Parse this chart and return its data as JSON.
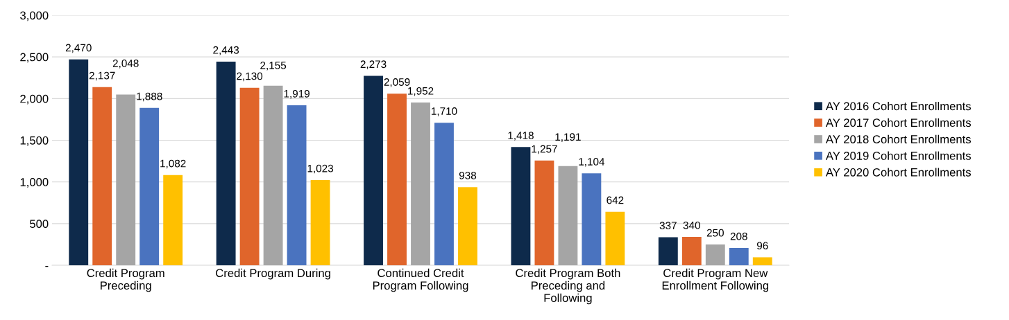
{
  "chart_data": {
    "type": "bar",
    "categories": [
      "Credit Program\nPreceding",
      "Credit Program During",
      "Continued Credit\nProgram Following",
      "Credit Program Both\nPreceding and\nFollowing",
      "Credit Program New\nEnrollment Following"
    ],
    "series": [
      {
        "name": "AY 2016 Cohort Enrollments",
        "color": "#0e2a4b",
        "values": [
          2470,
          2443,
          2273,
          1418,
          337
        ],
        "value_labels": [
          "2,470",
          "2,443",
          "2,273",
          "1,418",
          "337"
        ]
      },
      {
        "name": "AY 2017 Cohort Enrollments",
        "color": "#e0652b",
        "values": [
          2137,
          2130,
          2059,
          1257,
          340
        ],
        "value_labels": [
          "2,137",
          "2,130",
          "2,059",
          "1,257",
          "340"
        ]
      },
      {
        "name": "AY 2018 Cohort Enrollments",
        "color": "#a5a5a5",
        "values": [
          2048,
          2155,
          1952,
          1191,
          250
        ],
        "value_labels": [
          "2,048",
          "2,155",
          "1,952",
          "1,191",
          "250"
        ]
      },
      {
        "name": "AY 2019 Cohort Enrollments",
        "color": "#4a73bf",
        "values": [
          1888,
          1919,
          1710,
          1104,
          208
        ],
        "value_labels": [
          "1,888",
          "1,919",
          "1,710",
          "1,104",
          "208"
        ]
      },
      {
        "name": "AY 2020 Cohort Enrollments",
        "color": "#ffc000",
        "values": [
          1082,
          1023,
          938,
          642,
          96
        ],
        "value_labels": [
          "1,082",
          "1,023",
          "938",
          "642",
          "96"
        ]
      }
    ],
    "ylim": [
      0,
      3000
    ],
    "yticks": [
      {
        "value": 0,
        "label": "-"
      },
      {
        "value": 500,
        "label": "500"
      },
      {
        "value": 1000,
        "label": "1,000"
      },
      {
        "value": 1500,
        "label": "1,500"
      },
      {
        "value": 2000,
        "label": "2,000"
      },
      {
        "value": 2500,
        "label": "2,500"
      },
      {
        "value": 3000,
        "label": "3,000"
      }
    ],
    "grid": "y",
    "legend": "right"
  }
}
